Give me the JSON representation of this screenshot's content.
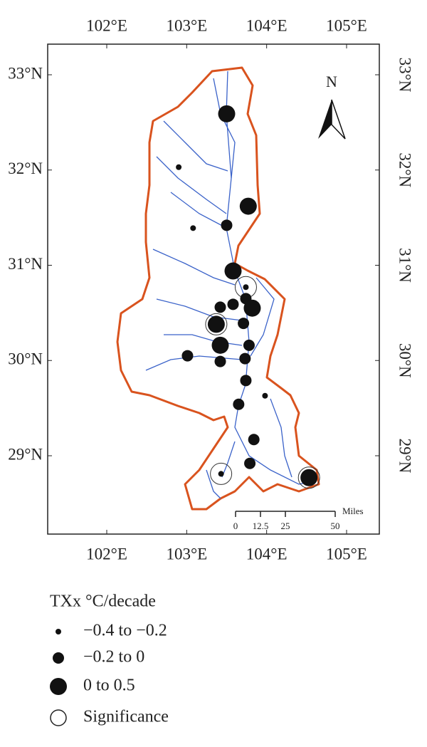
{
  "map": {
    "lon_ticks": [
      {
        "value": 102,
        "label": "102°E"
      },
      {
        "value": 103,
        "label": "103°E"
      },
      {
        "value": 104,
        "label": "104°E"
      },
      {
        "value": 105,
        "label": "105°E"
      }
    ],
    "lat_ticks": [
      {
        "value": 33,
        "label": "33°N"
      },
      {
        "value": 32,
        "label": "32°N"
      },
      {
        "value": 31,
        "label": "31°N"
      },
      {
        "value": 30,
        "label": "30°N"
      },
      {
        "value": 29,
        "label": "29°N"
      }
    ],
    "north_label": "N",
    "scale_bar": {
      "unit": "Miles",
      "ticks": [
        0,
        12.5,
        25,
        50
      ]
    },
    "stations": [
      {
        "lon": 103.5,
        "lat": 32.59,
        "class": 2,
        "significant": false
      },
      {
        "lon": 102.9,
        "lat": 32.03,
        "class": 0,
        "significant": false
      },
      {
        "lon": 103.77,
        "lat": 31.62,
        "class": 2,
        "significant": false
      },
      {
        "lon": 103.5,
        "lat": 31.42,
        "class": 1,
        "significant": false
      },
      {
        "lon": 103.08,
        "lat": 31.39,
        "class": 0,
        "significant": false
      },
      {
        "lon": 103.58,
        "lat": 30.94,
        "class": 2,
        "significant": false
      },
      {
        "lon": 103.74,
        "lat": 30.77,
        "class": 0,
        "significant": true
      },
      {
        "lon": 103.74,
        "lat": 30.65,
        "class": 1,
        "significant": false
      },
      {
        "lon": 103.42,
        "lat": 30.56,
        "class": 1,
        "significant": false
      },
      {
        "lon": 103.58,
        "lat": 30.59,
        "class": 1,
        "significant": false
      },
      {
        "lon": 103.82,
        "lat": 30.55,
        "class": 2,
        "significant": false
      },
      {
        "lon": 103.37,
        "lat": 30.38,
        "class": 2,
        "significant": true
      },
      {
        "lon": 103.71,
        "lat": 30.39,
        "class": 1,
        "significant": false
      },
      {
        "lon": 103.42,
        "lat": 30.16,
        "class": 2,
        "significant": false
      },
      {
        "lon": 103.78,
        "lat": 30.16,
        "class": 1,
        "significant": false
      },
      {
        "lon": 103.01,
        "lat": 30.05,
        "class": 1,
        "significant": false
      },
      {
        "lon": 103.42,
        "lat": 29.99,
        "class": 1,
        "significant": false
      },
      {
        "lon": 103.73,
        "lat": 30.02,
        "class": 1,
        "significant": false
      },
      {
        "lon": 103.74,
        "lat": 29.79,
        "class": 1,
        "significant": false
      },
      {
        "lon": 103.98,
        "lat": 29.63,
        "class": 0,
        "significant": false
      },
      {
        "lon": 103.65,
        "lat": 29.54,
        "class": 1,
        "significant": false
      },
      {
        "lon": 103.84,
        "lat": 29.17,
        "class": 1,
        "significant": false
      },
      {
        "lon": 103.79,
        "lat": 28.92,
        "class": 1,
        "significant": false
      },
      {
        "lon": 103.43,
        "lat": 28.81,
        "class": 0,
        "significant": true
      },
      {
        "lon": 104.53,
        "lat": 28.77,
        "class": 2,
        "significant": true
      }
    ]
  },
  "legend": {
    "title": "TXx °C/decade",
    "items": [
      "−0.4 to −0.2",
      "−0.2 to 0",
      "0 to 0.5"
    ],
    "significance": "Significance"
  }
}
